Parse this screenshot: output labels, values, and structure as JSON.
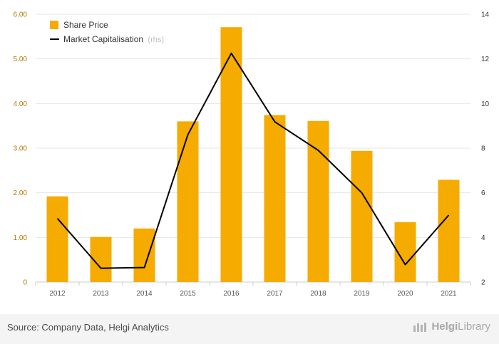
{
  "chart_data": {
    "type": "bar",
    "categories": [
      "2012",
      "2013",
      "2014",
      "2015",
      "2016",
      "2017",
      "2018",
      "2019",
      "2020",
      "2021"
    ],
    "series": [
      {
        "name": "Share Price",
        "kind": "bar",
        "axis": "left",
        "color": "#f5ab00",
        "values": [
          1.92,
          1.01,
          1.2,
          3.6,
          5.71,
          3.74,
          3.61,
          2.94,
          1.34,
          2.29
        ]
      },
      {
        "name": "Market Capitalisation",
        "note": "(rhs)",
        "kind": "line",
        "axis": "right",
        "color": "#000000",
        "values": [
          4.85,
          2.62,
          2.65,
          8.6,
          12.25,
          9.18,
          7.9,
          6.0,
          2.78,
          5.0
        ]
      }
    ],
    "left_axis": {
      "min": 0,
      "max": 6,
      "ticks": [
        "0",
        "1.00",
        "2.00",
        "3.00",
        "4.00",
        "5.00",
        "6.00"
      ]
    },
    "right_axis": {
      "min": 2,
      "max": 14,
      "ticks": [
        "2",
        "4",
        "6",
        "8",
        "10",
        "12",
        "14"
      ]
    },
    "legend": "top-left"
  },
  "footer": {
    "source": "Source: Company Data, Helgi Analytics",
    "brand_a": "Helgi",
    "brand_b": "Library"
  }
}
